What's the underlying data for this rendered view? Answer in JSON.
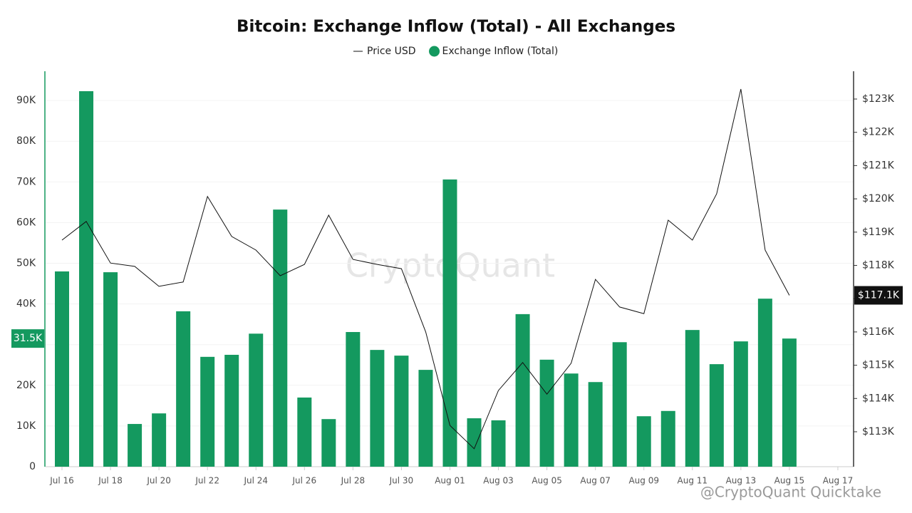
{
  "chart_data": {
    "type": "bar_line",
    "title": "Bitcoin: Exchange Inflow (Total) - All Exchanges",
    "watermark": "CryptoQuant",
    "credit": "@CryptoQuant Quicktake",
    "categories": [
      "Jul 16",
      null,
      "Jul 18",
      null,
      "Jul 20",
      null,
      "Jul 22",
      null,
      "Jul 24",
      null,
      "Jul 26",
      null,
      "Jul 28",
      null,
      "Jul 30",
      null,
      "Aug 01",
      null,
      "Aug 03",
      null,
      "Aug 05",
      null,
      "Aug 07",
      null,
      "Aug 09",
      null,
      "Aug 11",
      null,
      "Aug 13",
      null,
      "Aug 15",
      null,
      "Aug 17"
    ],
    "series": [
      {
        "name": "Price USD",
        "type": "line",
        "axis": "y2",
        "color": "#111111",
        "values": [
          118760,
          119320,
          118070,
          117970,
          117370,
          117500,
          120070,
          118870,
          118460,
          117690,
          118030,
          119510,
          118180,
          118030,
          117900,
          116000,
          113190,
          112490,
          114240,
          115080,
          114130,
          115060,
          117580,
          116750,
          116550,
          119360,
          118760,
          120150,
          123300,
          118460,
          117100,
          null,
          null
        ],
        "value_labels": [
          null,
          null,
          null,
          null,
          null,
          null,
          null,
          null,
          null,
          null,
          null,
          null,
          null,
          null,
          null,
          null,
          null,
          null,
          null,
          null,
          null,
          null,
          null,
          null,
          null,
          null,
          null,
          null,
          null,
          null,
          "$117.1K",
          null,
          null
        ]
      },
      {
        "name": "Exchange Inflow (Total)",
        "type": "bar",
        "color": "#14995f",
        "values": [
          48000,
          92300,
          47800,
          10500,
          13100,
          38200,
          27000,
          27500,
          32700,
          63200,
          17000,
          11700,
          33100,
          28700,
          27300,
          23800,
          70600,
          11900,
          11400,
          37500,
          26300,
          22900,
          20800,
          30600,
          12400,
          13700,
          33600,
          25200,
          30800,
          41300,
          31500,
          null,
          null
        ],
        "value_labels": [
          null,
          null,
          null,
          null,
          null,
          null,
          null,
          null,
          null,
          null,
          null,
          null,
          null,
          null,
          null,
          null,
          null,
          null,
          null,
          null,
          null,
          null,
          null,
          null,
          null,
          null,
          null,
          null,
          null,
          null,
          "31.5K",
          null,
          null
        ]
      }
    ],
    "ylim": [
      0,
      97200
    ],
    "yticks": [
      0,
      {
        "value": 10000,
        "label": "10K"
      },
      {
        "value": 20000,
        "label": "20K"
      },
      {
        "value": 30000,
        "label": "30K"
      },
      {
        "value": 40000,
        "label": "40K"
      },
      {
        "value": 50000,
        "label": "50K"
      },
      {
        "value": 60000,
        "label": "60K"
      },
      {
        "value": 70000,
        "label": "70K"
      },
      {
        "value": 80000,
        "label": "80K"
      },
      {
        "value": 90000,
        "label": "90K"
      }
    ],
    "y2lim": [
      111950,
      123835
    ],
    "y2ticks": [
      {
        "value": 113000,
        "label": "$113K"
      },
      {
        "value": 114000,
        "label": "$114K"
      },
      {
        "value": 115000,
        "label": "$115K"
      },
      {
        "value": 116000,
        "label": "$116K"
      },
      {
        "value": 117000,
        "label": "$117K"
      },
      {
        "value": 118000,
        "label": "$118K"
      },
      {
        "value": 119000,
        "label": "$119K"
      },
      {
        "value": 120000,
        "label": "$120K"
      },
      {
        "value": 121000,
        "label": "$121K"
      },
      {
        "value": 122000,
        "label": "$122K"
      },
      {
        "value": 123000,
        "label": "$123K"
      }
    ],
    "grid": true,
    "legend": "top"
  }
}
